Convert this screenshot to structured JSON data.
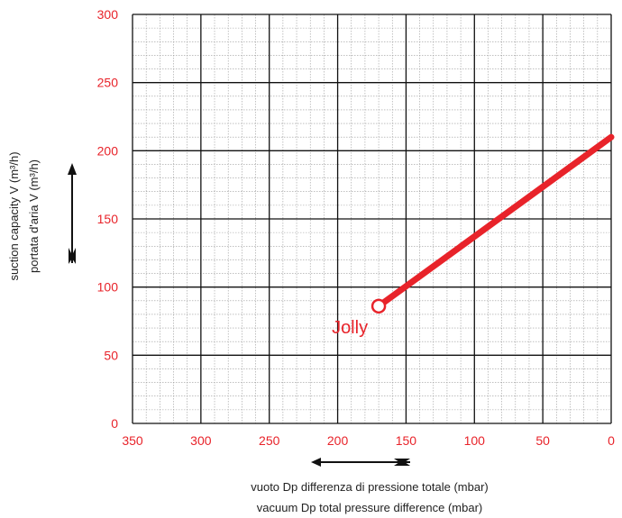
{
  "chart_data": {
    "type": "line",
    "x_reversed": true,
    "xlim": [
      0,
      350
    ],
    "ylim": [
      0,
      300
    ],
    "x_ticks": [
      350,
      300,
      250,
      200,
      150,
      100,
      50,
      0
    ],
    "y_ticks": [
      0,
      50,
      100,
      150,
      200,
      250,
      300
    ],
    "xlabel": [
      "vuoto Dp differenza di pressione totale (mbar)",
      "vacuum Dp total pressure difference (mbar)"
    ],
    "ylabel": [
      "portata d'aria V (m³/h)",
      "suction capacity V (m³/h)"
    ],
    "grid": {
      "major": true,
      "minor": true,
      "x_minor_step": 10,
      "y_minor_step": 10
    },
    "series": [
      {
        "name": "Jolly",
        "color": "#e8232a",
        "x": [
          170,
          0
        ],
        "y": [
          86,
          210
        ],
        "start_marker": "open-circle"
      }
    ]
  }
}
